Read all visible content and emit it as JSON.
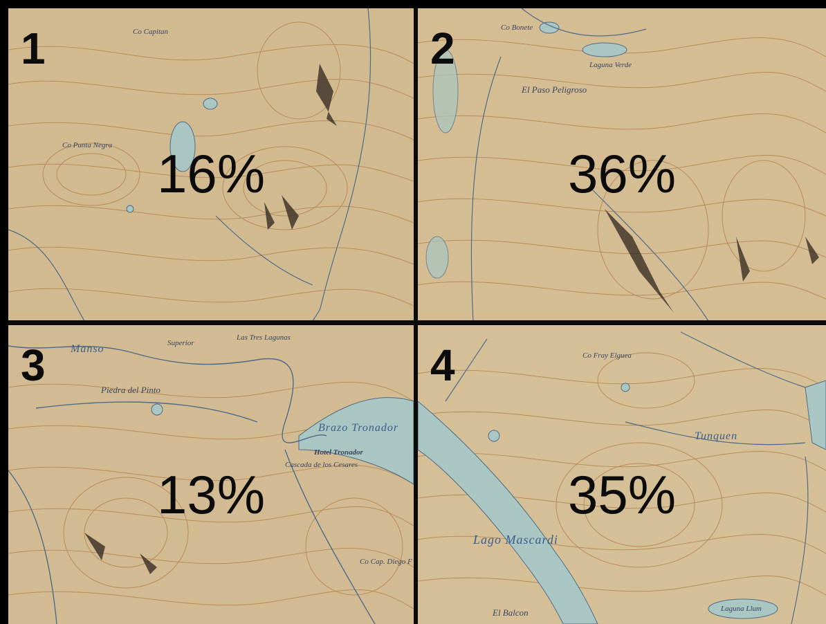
{
  "quadrants": [
    {
      "number": "1",
      "percent": "16%",
      "labels": [
        "Co Capitan",
        "Co Punta Negra"
      ]
    },
    {
      "number": "2",
      "percent": "36%",
      "labels": [
        "Co Bonete",
        "Laguna Verde",
        "El Paso Peligroso"
      ]
    },
    {
      "number": "3",
      "percent": "13%",
      "labels": [
        "Manso",
        "Superior",
        "Las Tres Lagunas",
        "Piedra del Pinto",
        "Brazo Tronador",
        "Hotel Tronador",
        "Cascada de los Cesares",
        "Co Cap. Diego F de Leon"
      ]
    },
    {
      "number": "4",
      "percent": "35%",
      "labels": [
        "Co Fray Elguea",
        "Tunquen",
        "Lago Mascardi",
        "El Balcon",
        "Laguna Llum"
      ]
    }
  ],
  "colors": {
    "paper": "#d9c49a",
    "contour": "#b07a46",
    "water": "#a9c6c2",
    "river": "#4e6a86",
    "divider": "#0b0b0b"
  }
}
